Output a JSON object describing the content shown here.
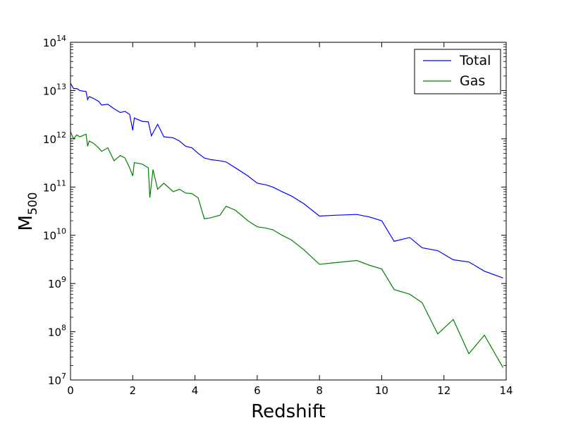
{
  "chart_data": {
    "type": "line",
    "xlabel": "Redshift",
    "ylabel": "M",
    "ylabel_subscript": "500",
    "xlim": [
      0,
      14
    ],
    "ylim": [
      10000000,
      100000000000000
    ],
    "yscale": "log",
    "grid": false,
    "legend_position": "top-right",
    "x_ticks": [
      0,
      2,
      4,
      6,
      8,
      10,
      12,
      14
    ],
    "x_tick_labels": [
      "0",
      "2",
      "4",
      "6",
      "8",
      "10",
      "12",
      "14"
    ],
    "y_ticks": [
      7,
      8,
      9,
      10,
      11,
      12,
      13,
      14
    ],
    "y_tick_base": "10",
    "y_tick_exponents": [
      "7",
      "8",
      "9",
      "10",
      "11",
      "12",
      "13",
      "14"
    ],
    "series": [
      {
        "name": "Total",
        "color": "#0000ff",
        "x": [
          0.0,
          0.1,
          0.2,
          0.3,
          0.5,
          0.55,
          0.6,
          0.75,
          0.9,
          1.0,
          1.2,
          1.4,
          1.6,
          1.75,
          1.9,
          2.0,
          2.05,
          2.3,
          2.5,
          2.6,
          2.8,
          3.0,
          3.3,
          3.5,
          3.7,
          3.9,
          4.1,
          4.3,
          4.5,
          4.8,
          5.0,
          5.3,
          5.7,
          6.0,
          6.3,
          6.5,
          6.8,
          7.1,
          7.5,
          8.0,
          8.5,
          9.2,
          9.6,
          10.0,
          10.4,
          10.9,
          11.3,
          11.8,
          12.3,
          12.8,
          13.3,
          13.9
        ],
        "y": [
          14100000000000,
          11000000000000,
          11000000000000,
          10000000000000,
          9500000000000,
          6500000000000,
          7500000000000,
          6800000000000,
          6000000000000,
          5000000000000,
          5200000000000,
          4200000000000,
          3500000000000,
          3700000000000,
          3200000000000,
          1500000000000,
          2700000000000,
          2300000000000,
          2250000000000,
          1150000000000,
          2000000000000,
          1100000000000,
          1050000000000,
          900000000000,
          700000000000,
          650000000000,
          500000000000,
          400000000000,
          370000000000,
          350000000000,
          330000000000,
          250000000000,
          170000000000,
          120000000000,
          110000000000,
          100000000000,
          80000000000,
          65000000000,
          45000000000,
          25000000000,
          26000000000,
          27000000000,
          24000000000,
          20000000000,
          7500000000,
          9000000000,
          5500000000,
          4800000000,
          3100000000,
          2800000000,
          1800000000,
          1300000000
        ]
      },
      {
        "name": "Gas",
        "color": "#008000",
        "x": [
          0.0,
          0.1,
          0.2,
          0.3,
          0.5,
          0.55,
          0.6,
          0.75,
          0.9,
          1.0,
          1.2,
          1.4,
          1.6,
          1.75,
          1.9,
          2.0,
          2.05,
          2.3,
          2.5,
          2.55,
          2.65,
          2.8,
          3.0,
          3.3,
          3.5,
          3.7,
          3.9,
          4.1,
          4.3,
          4.5,
          4.8,
          5.0,
          5.3,
          5.7,
          6.0,
          6.3,
          6.5,
          6.8,
          7.1,
          7.5,
          8.0,
          8.5,
          9.2,
          9.6,
          10.0,
          10.4,
          10.9,
          11.3,
          11.8,
          12.3,
          12.8,
          13.3,
          13.9
        ],
        "y": [
          1400000000000,
          1000000000000,
          1200000000000,
          1100000000000,
          1250000000000,
          700000000000,
          900000000000,
          800000000000,
          650000000000,
          550000000000,
          650000000000,
          350000000000,
          450000000000,
          400000000000,
          250000000000,
          170000000000,
          320000000000,
          300000000000,
          250000000000,
          60000000000,
          230000000000,
          90000000000,
          120000000000,
          80000000000,
          90000000000,
          75000000000,
          73000000000,
          60000000000,
          22000000000,
          23000000000,
          26000000000,
          40000000000,
          33000000000,
          20000000000,
          15000000000,
          14000000000,
          13000000000,
          10000000000,
          8000000000,
          5000000000,
          2500000000,
          2700000000,
          3000000000,
          2400000000,
          2000000000,
          750000000,
          600000000,
          400000000,
          90000000,
          180000000,
          35000000,
          85000000,
          18000000
        ]
      }
    ]
  }
}
